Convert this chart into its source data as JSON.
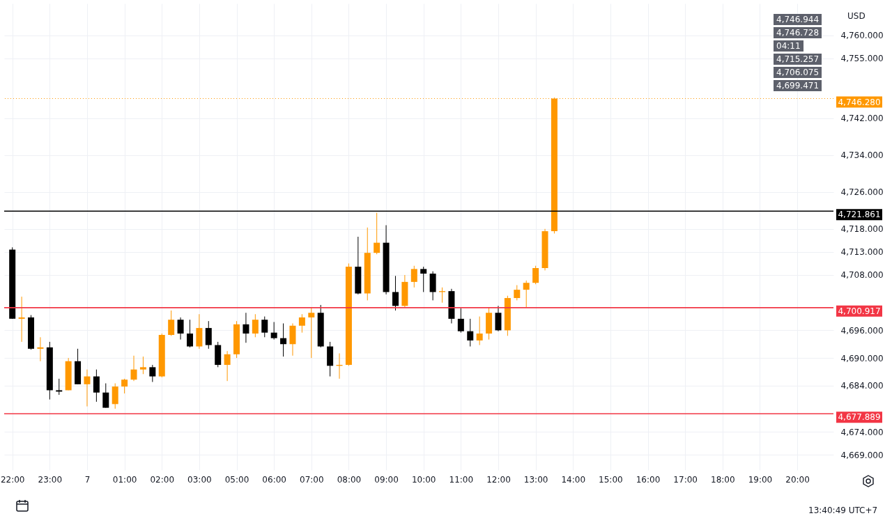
{
  "chart_data": {
    "type": "candlestick",
    "categories": [
      "22:00",
      null,
      null,
      null,
      "23:00",
      null,
      null,
      null,
      "7",
      null,
      null,
      null,
      "01:00",
      null,
      null,
      null,
      "02:00",
      null,
      null,
      null,
      "03:00",
      null,
      null,
      null,
      "05:00",
      null,
      null,
      null,
      "06:00",
      null,
      null,
      null,
      "07:00",
      null,
      null,
      null,
      "08:00",
      null,
      null,
      null,
      "09:00",
      null,
      null,
      null,
      "10:00",
      null,
      null,
      null,
      "11:00",
      null,
      null,
      null,
      "12:00",
      null,
      null,
      null,
      "13:00",
      null,
      null,
      null,
      "14:00",
      null,
      null,
      null,
      "15:00",
      null,
      null,
      null,
      "16:00",
      null,
      null,
      null,
      "17:00",
      null,
      null,
      null,
      "18:00",
      null,
      null,
      null,
      "19:00",
      null,
      null,
      null,
      "20:00",
      null,
      null,
      null
    ],
    "ohlc": [
      [
        4713.5,
        4714,
        4698.5,
        4698.5
      ],
      [
        4698.5,
        4703.3,
        4693.5,
        4698.8
      ],
      [
        4698.8,
        4699.3,
        4691.8,
        4692
      ],
      [
        4692,
        4694.5,
        4689.3,
        4692.3
      ],
      [
        4692.3,
        4693.5,
        4681,
        4683
      ],
      [
        4683,
        4685.5,
        4682,
        4682.7
      ],
      [
        4683,
        4690,
        4683,
        4689.3
      ],
      [
        4689.3,
        4692,
        4684.3,
        4684.3
      ],
      [
        4684.3,
        4687.5,
        4679.5,
        4686
      ],
      [
        4686,
        4687.5,
        4680.5,
        4682.5
      ],
      [
        4682.5,
        4684.5,
        4679.2,
        4679.2
      ],
      [
        4680,
        4684.5,
        4679,
        4683.8
      ],
      [
        4683.8,
        4685.5,
        4682.3,
        4685.3
      ],
      [
        4685.3,
        4690.5,
        4685,
        4687.5
      ],
      [
        4687.5,
        4690.3,
        4686.5,
        4688
      ],
      [
        4688,
        4688.5,
        4684.8,
        4686
      ],
      [
        4686,
        4695.3,
        4685.8,
        4695
      ],
      [
        4695,
        4700.3,
        4694.8,
        4698.3
      ],
      [
        4698.3,
        4698.8,
        4694,
        4695.3
      ],
      [
        4695.3,
        4698.3,
        4692.3,
        4692.5
      ],
      [
        4692.5,
        4699.5,
        4692,
        4696.5
      ],
      [
        4696.5,
        4698,
        4692,
        4692.8
      ],
      [
        4692.8,
        4693.5,
        4688,
        4688.5
      ],
      [
        4688.5,
        4691.5,
        4685,
        4690.8
      ],
      [
        4690.8,
        4698,
        4690,
        4697.3
      ],
      [
        4697.3,
        4699.8,
        4693.3,
        4695.3
      ],
      [
        4695.3,
        4699.5,
        4694.5,
        4698.3
      ],
      [
        4698.3,
        4699,
        4694.5,
        4695.5
      ],
      [
        4695.5,
        4697.8,
        4694,
        4694.3
      ],
      [
        4694.3,
        4697.5,
        4690.3,
        4693
      ],
      [
        4693,
        4697.5,
        4690.5,
        4697
      ],
      [
        4697,
        4699.5,
        4695.5,
        4698.8
      ],
      [
        4698.8,
        4701,
        4690,
        4699.8
      ],
      [
        4699.8,
        4701.5,
        4692.3,
        4692.5
      ],
      [
        4692.5,
        4693.5,
        4686,
        4688.3
      ],
      [
        4688.3,
        4691,
        4685.5,
        4688.5
      ],
      [
        4688.5,
        4710.5,
        4688.3,
        4709.8
      ],
      [
        4709.8,
        4716.3,
        4703.8,
        4704
      ],
      [
        4704,
        4718.3,
        4702.5,
        4712.8
      ],
      [
        4712.8,
        4721.5,
        4712.5,
        4715
      ],
      [
        4715,
        4718.8,
        4703.8,
        4704.3
      ],
      [
        4704.3,
        4707.8,
        4700.3,
        4701.3
      ],
      [
        4701.3,
        4708,
        4701,
        4706.5
      ],
      [
        4706.5,
        4710,
        4705.3,
        4709.3
      ],
      [
        4709.3,
        4709.8,
        4704.3,
        4708.3
      ],
      [
        4708.3,
        4708.8,
        4702.5,
        4704.3
      ],
      [
        4704.3,
        4705.3,
        4702,
        4704.5
      ],
      [
        4704.5,
        4705,
        4697.5,
        4698.5
      ],
      [
        4698.5,
        4700.8,
        4695.5,
        4695.8
      ],
      [
        4695.8,
        4698.5,
        4692.5,
        4693.8
      ],
      [
        4693.8,
        4699,
        4692.8,
        4695.3
      ],
      [
        4695.3,
        4701,
        4694,
        4699.8
      ],
      [
        4699.8,
        4701.3,
        4695.8,
        4696
      ],
      [
        4696,
        4703.5,
        4694.8,
        4703
      ],
      [
        4703,
        4705.8,
        4702.5,
        4704.8
      ],
      [
        4704.8,
        4706.8,
        4701,
        4706.3
      ],
      [
        4706.3,
        4710,
        4706,
        4709.5
      ],
      [
        4709.5,
        4718,
        4709,
        4717.5
      ],
      [
        4717.5,
        4746.5,
        4717,
        4746.28
      ],
      null,
      null,
      null,
      null,
      null,
      null,
      null,
      null,
      null,
      null,
      null,
      null,
      null,
      null,
      null,
      null,
      null,
      null,
      null,
      null,
      null,
      null,
      null,
      null,
      null,
      null,
      null,
      null,
      null
    ],
    "colors": [
      "#000000",
      "#ff9800",
      "#000000",
      "#ff9800",
      "#000000",
      "#000000",
      "#ff9800",
      "#000000",
      "#ff9800",
      "#000000",
      "#000000",
      "#ff9800",
      "#ff9800",
      "#ff9800",
      "#ff9800",
      "#000000",
      "#ff9800",
      "#ff9800",
      "#000000",
      "#000000",
      "#ff9800",
      "#000000",
      "#000000",
      "#ff9800",
      "#ff9800",
      "#000000",
      "#ff9800",
      "#000000",
      "#000000",
      "#000000",
      "#ff9800",
      "#ff9800",
      "#ff9800",
      "#000000",
      "#000000",
      "#ff9800",
      "#ff9800",
      "#000000",
      "#ff9800",
      "#ff9800",
      "#000000",
      "#000000",
      "#ff9800",
      "#ff9800",
      "#000000",
      "#000000",
      "#ff9800",
      "#000000",
      "#000000",
      "#000000",
      "#ff9800",
      "#ff9800",
      "#000000",
      "#ff9800",
      "#ff9800",
      "#ff9800",
      "#ff9800",
      "#ff9800",
      "#ff9800",
      null,
      null,
      null,
      null,
      null,
      null,
      null,
      null,
      null,
      null,
      null,
      null,
      null,
      null,
      null,
      null,
      null,
      null,
      null,
      null,
      null,
      null,
      null,
      null,
      null,
      null,
      null,
      null,
      null
    ],
    "ylim": [
      4665.7,
      4766.9
    ],
    "yticks": [
      {
        "value": 4760,
        "label": "4,760.000"
      },
      {
        "value": 4755,
        "label": "4,755.000"
      },
      {
        "value": 4742,
        "label": "4,742.000"
      },
      {
        "value": 4734,
        "label": "4,734.000"
      },
      {
        "value": 4726,
        "label": "4,726.000"
      },
      {
        "value": 4718,
        "label": "4,718.000"
      },
      {
        "value": 4713,
        "label": "4,713.000"
      },
      {
        "value": 4708,
        "label": "4,708.000"
      },
      {
        "value": 4696,
        "label": "4,696.000"
      },
      {
        "value": 4690,
        "label": "4,690.000"
      },
      {
        "value": 4684,
        "label": "4,684.000"
      },
      {
        "value": 4674,
        "label": "4,674.000"
      },
      {
        "value": 4669,
        "label": "4,669.000"
      }
    ],
    "grid": true,
    "ref_lines": [
      {
        "axis": "y",
        "value": 4746.28,
        "label": "4,746.280",
        "color": "#ff9800",
        "line_style": "dotted"
      },
      {
        "axis": "y",
        "value": 4721.861,
        "label": "4,721.861",
        "color": "#000000",
        "line_style": "solid"
      },
      {
        "axis": "y",
        "value": 4700.917,
        "label": "4,700.917",
        "color": "#f23645",
        "line_style": "solid"
      },
      {
        "axis": "y",
        "value": 4677.889,
        "label": "4,677.889",
        "color": "#f23645",
        "line_style": "solid"
      }
    ],
    "annotations": [
      "USD",
      "4,746.944",
      "4,746.728",
      "04:11",
      "4,715.257",
      "4,706.075",
      "4,699.471",
      "13:40:49 UTC+7"
    ]
  }
}
